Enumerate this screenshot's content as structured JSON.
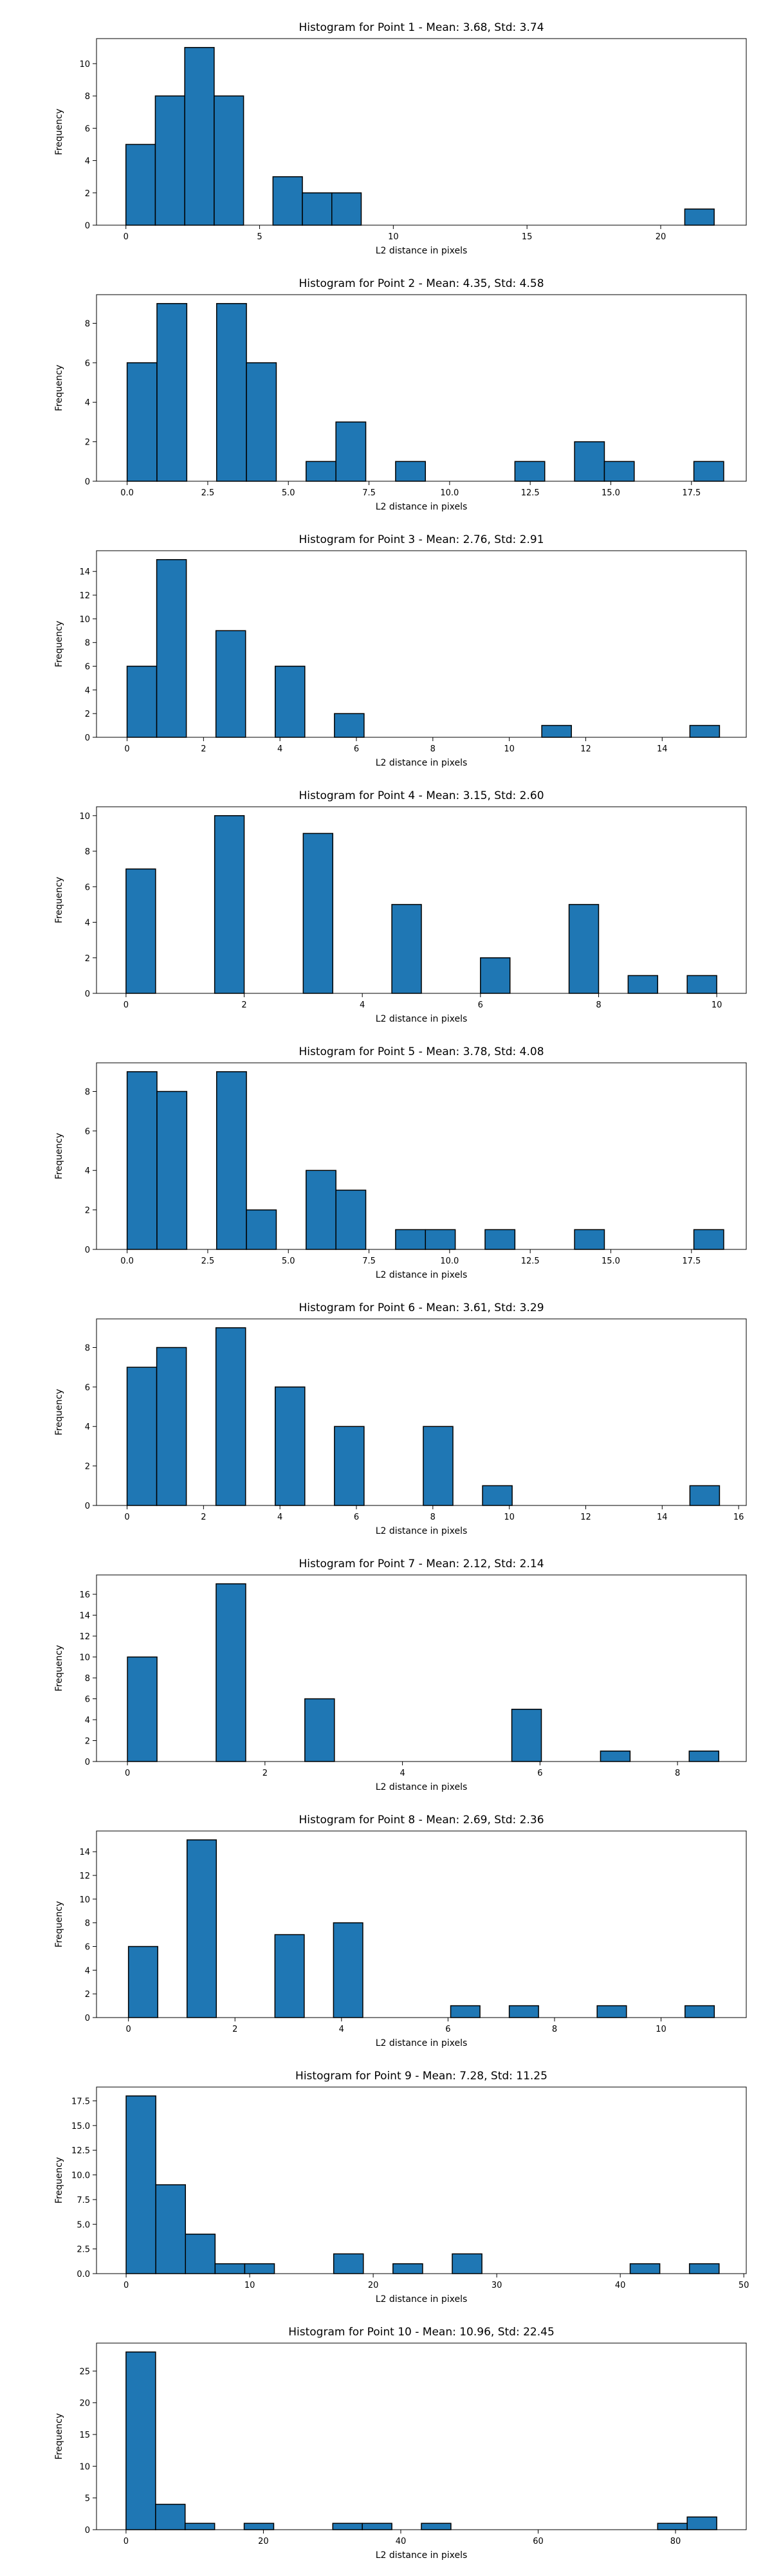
{
  "figure": {
    "background": "#ffffff",
    "bar_color": "#1f77b4",
    "edge_color": "#000000"
  },
  "chart_data": [
    {
      "type": "bar",
      "title": "Histogram for Point 1 - Mean: 3.68, Std: 3.74",
      "xlabel": "L2 distance in pixels",
      "ylabel": "Frequency",
      "xlim": [
        -1.1,
        23.2
      ],
      "ylim": [
        0,
        11.55
      ],
      "xticks": [
        0,
        5,
        10,
        15,
        20
      ],
      "xtick_labels": [
        "0",
        "5",
        "10",
        "15",
        "20"
      ],
      "yticks": [
        0,
        2,
        4,
        6,
        8,
        10
      ],
      "ytick_labels": [
        "0",
        "2",
        "4",
        "6",
        "8",
        "10"
      ],
      "bin_edges": [
        0,
        1.1,
        2.2,
        3.3,
        4.4,
        5.5,
        6.6,
        7.7,
        8.8,
        9.9,
        11.0,
        12.1,
        13.2,
        14.3,
        15.4,
        16.5,
        17.6,
        18.7,
        19.8,
        20.9,
        22.0
      ],
      "counts": [
        5,
        8,
        11,
        8,
        0,
        3,
        2,
        2,
        0,
        0,
        0,
        0,
        0,
        0,
        0,
        0,
        0,
        0,
        0,
        1
      ]
    },
    {
      "type": "bar",
      "title": "Histogram for Point 2 - Mean: 4.35, Std: 4.58",
      "xlabel": "L2 distance in pixels",
      "ylabel": "Frequency",
      "xlim": [
        -0.95,
        19.2
      ],
      "ylim": [
        0,
        9.45
      ],
      "xticks": [
        0,
        2.5,
        5,
        7.5,
        10,
        12.5,
        15,
        17.5
      ],
      "xtick_labels": [
        "0.0",
        "2.5",
        "5.0",
        "7.5",
        "10.0",
        "12.5",
        "15.0",
        "17.5"
      ],
      "yticks": [
        0,
        2,
        4,
        6,
        8
      ],
      "ytick_labels": [
        "0",
        "2",
        "4",
        "6",
        "8"
      ],
      "bin_edges": [
        0,
        0.925,
        1.85,
        2.775,
        3.7,
        4.625,
        5.55,
        6.475,
        7.4,
        8.325,
        9.25,
        10.175,
        11.1,
        12.025,
        12.95,
        13.875,
        14.8,
        15.725,
        16.65,
        17.575,
        18.5
      ],
      "counts": [
        6,
        9,
        0,
        9,
        6,
        0,
        1,
        3,
        0,
        1,
        0,
        0,
        0,
        1,
        0,
        2,
        1,
        0,
        0,
        1
      ]
    },
    {
      "type": "bar",
      "title": "Histogram for Point 3 - Mean: 2.76, Std: 2.91",
      "xlabel": "L2 distance in pixels",
      "ylabel": "Frequency",
      "xlim": [
        -0.8,
        16.2
      ],
      "ylim": [
        0,
        15.75
      ],
      "xticks": [
        0,
        2,
        4,
        6,
        8,
        10,
        12,
        14
      ],
      "xtick_labels": [
        "0",
        "2",
        "4",
        "6",
        "8",
        "10",
        "12",
        "14"
      ],
      "yticks": [
        0,
        2,
        4,
        6,
        8,
        10,
        12,
        14
      ],
      "ytick_labels": [
        "0",
        "2",
        "4",
        "6",
        "8",
        "10",
        "12",
        "14"
      ],
      "bin_edges": [
        0,
        0.775,
        1.55,
        2.325,
        3.1,
        3.875,
        4.65,
        5.425,
        6.2,
        6.975,
        7.75,
        8.525,
        9.3,
        10.075,
        10.85,
        11.625,
        12.4,
        13.175,
        13.95,
        14.725,
        15.5
      ],
      "counts": [
        6,
        15,
        0,
        9,
        0,
        6,
        0,
        2,
        0,
        0,
        0,
        0,
        0,
        0,
        1,
        0,
        0,
        0,
        0,
        1
      ]
    },
    {
      "type": "bar",
      "title": "Histogram for Point 4 - Mean: 3.15, Std: 2.60",
      "xlabel": "L2 distance in pixels",
      "ylabel": "Frequency",
      "xlim": [
        -0.5,
        10.5
      ],
      "ylim": [
        0,
        10.5
      ],
      "xticks": [
        0,
        2,
        4,
        6,
        8,
        10
      ],
      "xtick_labels": [
        "0",
        "2",
        "4",
        "6",
        "8",
        "10"
      ],
      "yticks": [
        0,
        2,
        4,
        6,
        8,
        10
      ],
      "ytick_labels": [
        "0",
        "2",
        "4",
        "6",
        "8",
        "10"
      ],
      "bin_edges": [
        0,
        0.5,
        1.0,
        1.5,
        2.0,
        2.5,
        3.0,
        3.5,
        4.0,
        4.5,
        5.0,
        5.5,
        6.0,
        6.5,
        7.0,
        7.5,
        8.0,
        8.5,
        9.0,
        9.5,
        10.0
      ],
      "counts": [
        7,
        0,
        0,
        10,
        0,
        0,
        9,
        0,
        0,
        5,
        0,
        0,
        2,
        0,
        0,
        5,
        0,
        1,
        0,
        1
      ]
    },
    {
      "type": "bar",
      "title": "Histogram for Point 5 - Mean: 3.78, Std: 4.08",
      "xlabel": "L2 distance in pixels",
      "ylabel": "Frequency",
      "xlim": [
        -0.95,
        19.2
      ],
      "ylim": [
        0,
        9.45
      ],
      "xticks": [
        0,
        2.5,
        5,
        7.5,
        10,
        12.5,
        15,
        17.5
      ],
      "xtick_labels": [
        "0.0",
        "2.5",
        "5.0",
        "7.5",
        "10.0",
        "12.5",
        "15.0",
        "17.5"
      ],
      "yticks": [
        0,
        2,
        4,
        6,
        8
      ],
      "ytick_labels": [
        "0",
        "2",
        "4",
        "6",
        "8"
      ],
      "bin_edges": [
        0,
        0.925,
        1.85,
        2.775,
        3.7,
        4.625,
        5.55,
        6.475,
        7.4,
        8.325,
        9.25,
        10.175,
        11.1,
        12.025,
        12.95,
        13.875,
        14.8,
        15.725,
        16.65,
        17.575,
        18.5
      ],
      "counts": [
        9,
        8,
        0,
        9,
        2,
        0,
        4,
        3,
        0,
        1,
        1,
        0,
        1,
        0,
        0,
        1,
        0,
        0,
        0,
        1
      ]
    },
    {
      "type": "bar",
      "title": "Histogram for Point 6 - Mean: 3.61, Std: 3.29",
      "xlabel": "L2 distance in pixels",
      "ylabel": "Frequency",
      "xlim": [
        -0.8,
        16.2
      ],
      "ylim": [
        0,
        9.45
      ],
      "xticks": [
        0,
        2,
        4,
        6,
        8,
        10,
        12,
        14,
        16
      ],
      "xtick_labels": [
        "0",
        "2",
        "4",
        "6",
        "8",
        "10",
        "12",
        "14",
        "16"
      ],
      "yticks": [
        0,
        2,
        4,
        6,
        8
      ],
      "ytick_labels": [
        "0",
        "2",
        "4",
        "6",
        "8"
      ],
      "bin_edges": [
        0,
        0.775,
        1.55,
        2.325,
        3.1,
        3.875,
        4.65,
        5.425,
        6.2,
        6.975,
        7.75,
        8.525,
        9.3,
        10.075,
        10.85,
        11.625,
        12.4,
        13.175,
        13.95,
        14.725,
        15.5
      ],
      "counts": [
        7,
        8,
        0,
        9,
        0,
        6,
        0,
        4,
        0,
        0,
        4,
        0,
        1,
        0,
        0,
        0,
        0,
        0,
        0,
        1
      ]
    },
    {
      "type": "bar",
      "title": "Histogram for Point 7 - Mean: 2.12, Std: 2.14",
      "xlabel": "L2 distance in pixels",
      "ylabel": "Frequency",
      "xlim": [
        -0.45,
        9.0
      ],
      "ylim": [
        0,
        17.85
      ],
      "xticks": [
        0,
        2,
        4,
        6,
        8
      ],
      "xtick_labels": [
        "0",
        "2",
        "4",
        "6",
        "8"
      ],
      "yticks": [
        0,
        2,
        4,
        6,
        8,
        10,
        12,
        14,
        16
      ],
      "ytick_labels": [
        "0",
        "2",
        "4",
        "6",
        "8",
        "10",
        "12",
        "14",
        "16"
      ],
      "bin_edges": [
        0,
        0.43,
        0.86,
        1.29,
        1.72,
        2.15,
        2.58,
        3.01,
        3.44,
        3.87,
        4.3,
        4.73,
        5.16,
        5.59,
        6.02,
        6.45,
        6.88,
        7.31,
        7.74,
        8.17,
        8.6
      ],
      "counts": [
        10,
        0,
        0,
        17,
        0,
        0,
        6,
        0,
        0,
        0,
        0,
        0,
        0,
        5,
        0,
        0,
        1,
        0,
        0,
        1
      ]
    },
    {
      "type": "bar",
      "title": "Histogram for Point 8 - Mean: 2.69, Std: 2.36",
      "xlabel": "L2 distance in pixels",
      "ylabel": "Frequency",
      "xlim": [
        -0.6,
        11.6
      ],
      "ylim": [
        0,
        15.75
      ],
      "xticks": [
        0,
        2,
        4,
        6,
        8,
        10
      ],
      "xtick_labels": [
        "0",
        "2",
        "4",
        "6",
        "8",
        "10"
      ],
      "yticks": [
        0,
        2,
        4,
        6,
        8,
        10,
        12,
        14
      ],
      "ytick_labels": [
        "0",
        "2",
        "4",
        "6",
        "8",
        "10",
        "12",
        "14"
      ],
      "bin_edges": [
        0,
        0.55,
        1.1,
        1.65,
        2.2,
        2.75,
        3.3,
        3.85,
        4.4,
        4.95,
        5.5,
        6.05,
        6.6,
        7.15,
        7.7,
        8.25,
        8.8,
        9.35,
        9.9,
        10.45,
        11.0
      ],
      "counts": [
        6,
        0,
        15,
        0,
        0,
        7,
        0,
        8,
        0,
        0,
        0,
        1,
        0,
        1,
        0,
        0,
        1,
        0,
        0,
        1
      ]
    },
    {
      "type": "bar",
      "title": "Histogram for Point 9 - Mean: 7.28, Std: 11.25",
      "xlabel": "L2 distance in pixels",
      "ylabel": "Frequency",
      "xlim": [
        -2.4,
        50.2
      ],
      "ylim": [
        0,
        18.9
      ],
      "xticks": [
        0,
        10,
        20,
        30,
        40,
        50
      ],
      "xtick_labels": [
        "0",
        "10",
        "20",
        "30",
        "40",
        "50"
      ],
      "yticks": [
        0,
        2.5,
        5,
        7.5,
        10,
        12.5,
        15,
        17.5
      ],
      "ytick_labels": [
        "0.0",
        "2.5",
        "5.0",
        "7.5",
        "10.0",
        "12.5",
        "15.0",
        "17.5"
      ],
      "bin_edges": [
        0,
        2.4,
        4.8,
        7.2,
        9.6,
        12.0,
        14.4,
        16.8,
        19.2,
        21.6,
        24.0,
        26.4,
        28.8,
        31.2,
        33.6,
        36.0,
        38.4,
        40.8,
        43.2,
        45.6,
        48.0
      ],
      "counts": [
        18,
        9,
        4,
        1,
        1,
        0,
        0,
        2,
        0,
        1,
        0,
        2,
        0,
        0,
        0,
        0,
        0,
        1,
        0,
        1
      ]
    },
    {
      "type": "bar",
      "title": "Histogram for Point 10 - Mean: 10.96, Std: 22.45",
      "xlabel": "L2 distance in pixels",
      "ylabel": "Frequency",
      "xlim": [
        -4.3,
        90.3
      ],
      "ylim": [
        0,
        29.4
      ],
      "xticks": [
        0,
        20,
        40,
        60,
        80
      ],
      "xtick_labels": [
        "0",
        "20",
        "40",
        "60",
        "80"
      ],
      "yticks": [
        0,
        5,
        10,
        15,
        20,
        25
      ],
      "ytick_labels": [
        "0",
        "5",
        "10",
        "15",
        "20",
        "25"
      ],
      "bin_edges": [
        0,
        4.3,
        8.6,
        12.9,
        17.2,
        21.5,
        25.8,
        30.1,
        34.4,
        38.7,
        43.0,
        47.3,
        51.6,
        55.9,
        60.2,
        64.5,
        68.8,
        73.1,
        77.4,
        81.7,
        86.0
      ],
      "counts": [
        28,
        4,
        1,
        0,
        1,
        0,
        0,
        1,
        1,
        0,
        1,
        0,
        0,
        0,
        0,
        0,
        0,
        0,
        1,
        2
      ]
    }
  ]
}
